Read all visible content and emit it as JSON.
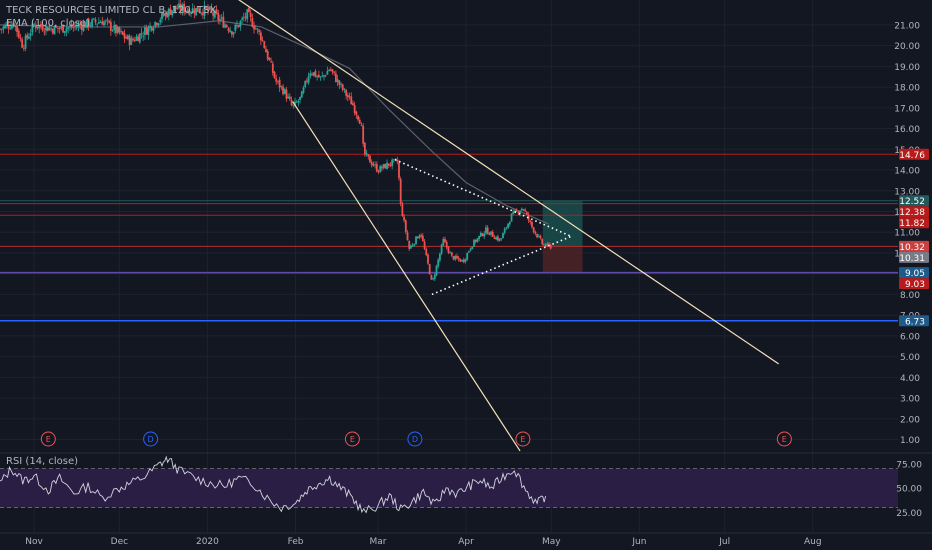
{
  "header": {
    "symbol_line": "TECK RESOURCES LIMITED CL B, 120, TSX",
    "ema_label": "EMA (100, close)",
    "rsi_label": "RSI (14, close)"
  },
  "colors": {
    "background": "#131722",
    "grid": "#1e222d",
    "axis_text": "#b2b5be",
    "candle_up": "#26a69a",
    "candle_down": "#ef5350",
    "ema": "#5d606b",
    "trendline": "#f5e1b8",
    "red_level": "#b71c1c",
    "blue_level": "#1e5a8a",
    "target_zone": "#1a4a4a",
    "stop_zone": "#4a2226",
    "rsi_fill": "#2a1e45",
    "rsi_line": "#d1d4dc"
  },
  "chart_data": {
    "type": "candlestick",
    "xlim": [
      "2019-10-20",
      "2020-08-31"
    ],
    "ylim": [
      0.4,
      22.2
    ],
    "y_ticks": [
      "1.00",
      "2.00",
      "3.00",
      "4.00",
      "5.00",
      "6.00",
      "7.00",
      "8.00",
      "9.00",
      "10.00",
      "11.00",
      "12.00",
      "13.00",
      "14.00",
      "15.00",
      "16.00",
      "17.00",
      "18.00",
      "19.00",
      "20.00",
      "21.00"
    ],
    "x_ticks": [
      {
        "date": "2019-11-01",
        "label": "Nov"
      },
      {
        "date": "2019-12-01",
        "label": "Dec"
      },
      {
        "date": "2020-01-01",
        "label": "2020"
      },
      {
        "date": "2020-02-01",
        "label": "Feb"
      },
      {
        "date": "2020-03-01",
        "label": "Mar"
      },
      {
        "date": "2020-04-01",
        "label": "Apr"
      },
      {
        "date": "2020-05-01",
        "label": "May"
      },
      {
        "date": "2020-06-01",
        "label": "Jun"
      },
      {
        "date": "2020-07-01",
        "label": "Jul"
      },
      {
        "date": "2020-08-01",
        "label": "Aug"
      }
    ],
    "price_path": [
      [
        "2019-10-20",
        20.8
      ],
      [
        "2019-10-25",
        21.1
      ],
      [
        "2019-10-28",
        20.0
      ],
      [
        "2019-11-01",
        21.0
      ],
      [
        "2019-11-08",
        20.8
      ],
      [
        "2019-11-15",
        20.9
      ],
      [
        "2019-11-25",
        21.2
      ],
      [
        "2019-12-01",
        20.6
      ],
      [
        "2019-12-05",
        20.2
      ],
      [
        "2019-12-10",
        20.7
      ],
      [
        "2019-12-15",
        21.3
      ],
      [
        "2019-12-20",
        21.8
      ],
      [
        "2020-01-01",
        21.7
      ],
      [
        "2020-01-05",
        21.3
      ],
      [
        "2020-01-10",
        20.7
      ],
      [
        "2020-01-15",
        21.5
      ],
      [
        "2020-01-20",
        20.4
      ],
      [
        "2020-01-25",
        18.3
      ],
      [
        "2020-01-28",
        17.8
      ],
      [
        "2020-01-31",
        17.0
      ],
      [
        "2020-02-03",
        17.5
      ],
      [
        "2020-02-06",
        18.8
      ],
      [
        "2020-02-10",
        18.4
      ],
      [
        "2020-02-13",
        18.9
      ],
      [
        "2020-02-17",
        18.0
      ],
      [
        "2020-02-21",
        17.2
      ],
      [
        "2020-02-24",
        16.3
      ],
      [
        "2020-02-25",
        14.8
      ],
      [
        "2020-03-01",
        14.0
      ],
      [
        "2020-03-05",
        14.3
      ],
      [
        "2020-03-08",
        14.4
      ],
      [
        "2020-03-09",
        12.3
      ],
      [
        "2020-03-12",
        10.2
      ],
      [
        "2020-03-16",
        11.0
      ],
      [
        "2020-03-19",
        9.2
      ],
      [
        "2020-03-20",
        8.5
      ],
      [
        "2020-03-24",
        10.6
      ],
      [
        "2020-03-27",
        9.8
      ],
      [
        "2020-03-31",
        9.6
      ],
      [
        "2020-04-03",
        10.4
      ],
      [
        "2020-04-08",
        11.1
      ],
      [
        "2020-04-13",
        10.6
      ],
      [
        "2020-04-17",
        11.8
      ],
      [
        "2020-04-21",
        12.2
      ],
      [
        "2020-04-24",
        11.3
      ],
      [
        "2020-04-28",
        10.4
      ],
      [
        "2020-05-01",
        10.3
      ]
    ],
    "ema_path": [
      [
        "2019-10-20",
        21.0
      ],
      [
        "2019-11-15",
        20.9
      ],
      [
        "2019-12-15",
        20.9
      ],
      [
        "2020-01-05",
        21.2
      ],
      [
        "2020-01-20",
        20.9
      ],
      [
        "2020-02-05",
        19.9
      ],
      [
        "2020-02-20",
        18.9
      ],
      [
        "2020-03-05",
        16.9
      ],
      [
        "2020-03-20",
        14.9
      ],
      [
        "2020-04-01",
        13.4
      ],
      [
        "2020-04-15",
        12.3
      ],
      [
        "2020-04-30",
        11.4
      ]
    ],
    "horizontal_levels": [
      {
        "price": 14.76,
        "label": "14.76",
        "color": "red"
      },
      {
        "price": 12.52,
        "label": "12.52",
        "color": "teal"
      },
      {
        "price": 12.38,
        "label": "12.38",
        "color": "red"
      },
      {
        "price": 11.82,
        "label": "11.82",
        "color": "red"
      },
      {
        "price": 10.32,
        "label": "10.32",
        "color": "red-light"
      },
      {
        "price": 10.31,
        "label": "10.31",
        "color": "gray"
      },
      {
        "price": 9.05,
        "label": "9.05",
        "color": "blue"
      },
      {
        "price": 9.03,
        "label": "9.03",
        "color": "red"
      },
      {
        "price": 6.73,
        "label": "6.73",
        "color": "blue"
      }
    ],
    "trendlines": [
      {
        "style": "solid",
        "points": [
          [
            "2020-01-10",
            22.4
          ],
          [
            "2020-07-20",
            4.65
          ]
        ]
      },
      {
        "style": "solid",
        "points": [
          [
            "2020-01-31",
            17.3
          ],
          [
            "2020-04-20",
            0.45
          ]
        ]
      },
      {
        "style": "dotted",
        "points": [
          [
            "2020-03-07",
            14.5
          ],
          [
            "2020-05-08",
            10.8
          ]
        ]
      },
      {
        "style": "dotted",
        "points": [
          [
            "2020-03-20",
            8.0
          ],
          [
            "2020-05-08",
            10.8
          ]
        ]
      }
    ],
    "position_tool": {
      "start": "2020-04-28",
      "end": "2020-05-12",
      "entry": 10.32,
      "target": 12.52,
      "stop": 9.03
    },
    "event_markers": [
      {
        "date": "2019-11-06",
        "letter": "E"
      },
      {
        "date": "2019-12-12",
        "letter": "D"
      },
      {
        "date": "2020-02-21",
        "letter": "E"
      },
      {
        "date": "2020-03-14",
        "letter": "D"
      },
      {
        "date": "2020-04-21",
        "letter": "E"
      },
      {
        "date": "2020-07-22",
        "letter": "E"
      }
    ],
    "rsi": {
      "y_ticks": [
        "75.00",
        "50.00",
        "25.00"
      ],
      "upper": 70,
      "lower": 30,
      "shaded_until": "2020-08-31",
      "path": [
        [
          "2019-10-20",
          55
        ],
        [
          "2019-10-24",
          70
        ],
        [
          "2019-10-28",
          58
        ],
        [
          "2019-11-01",
          62
        ],
        [
          "2019-11-06",
          48
        ],
        [
          "2019-11-10",
          60
        ],
        [
          "2019-11-15",
          45
        ],
        [
          "2019-11-20",
          52
        ],
        [
          "2019-11-25",
          40
        ],
        [
          "2019-12-01",
          50
        ],
        [
          "2019-12-05",
          55
        ],
        [
          "2019-12-10",
          62
        ],
        [
          "2019-12-15",
          74
        ],
        [
          "2019-12-18",
          80
        ],
        [
          "2019-12-22",
          68
        ],
        [
          "2019-12-28",
          60
        ],
        [
          "2020-01-02",
          55
        ],
        [
          "2020-01-07",
          52
        ],
        [
          "2020-01-12",
          60
        ],
        [
          "2020-01-17",
          55
        ],
        [
          "2020-01-22",
          40
        ],
        [
          "2020-01-27",
          30
        ],
        [
          "2020-02-01",
          35
        ],
        [
          "2020-02-05",
          48
        ],
        [
          "2020-02-09",
          55
        ],
        [
          "2020-02-13",
          60
        ],
        [
          "2020-02-17",
          50
        ],
        [
          "2020-02-21",
          40
        ],
        [
          "2020-02-25",
          25
        ],
        [
          "2020-03-01",
          32
        ],
        [
          "2020-03-05",
          42
        ],
        [
          "2020-03-09",
          28
        ],
        [
          "2020-03-13",
          36
        ],
        [
          "2020-03-17",
          46
        ],
        [
          "2020-03-21",
          32
        ],
        [
          "2020-03-25",
          50
        ],
        [
          "2020-03-29",
          44
        ],
        [
          "2020-04-02",
          52
        ],
        [
          "2020-04-06",
          58
        ],
        [
          "2020-04-10",
          50
        ],
        [
          "2020-04-14",
          62
        ],
        [
          "2020-04-18",
          70
        ],
        [
          "2020-04-22",
          48
        ],
        [
          "2020-04-26",
          34
        ],
        [
          "2020-04-29",
          42
        ]
      ]
    },
    "rsi_markers": [
      {
        "date": "2019-12-18",
        "value": 80
      }
    ]
  }
}
